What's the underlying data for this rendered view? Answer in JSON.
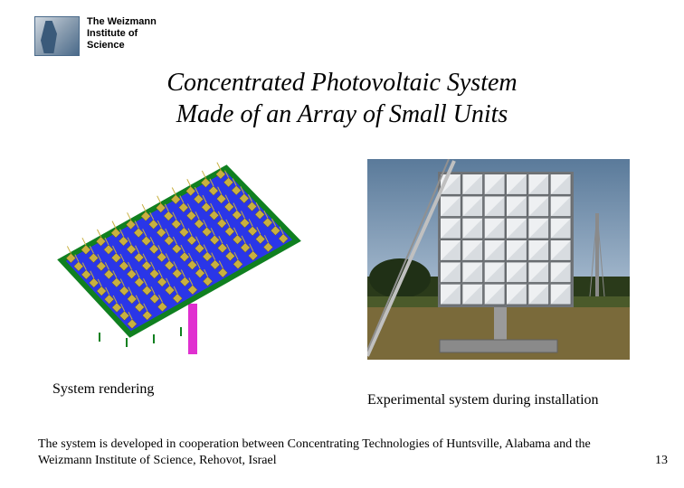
{
  "header": {
    "institute": "The Weizmann\nInstitute of\nScience",
    "logo_colors": {
      "border": "#4a6a8a",
      "fill": "#8a9db0",
      "shape": "#3a5a7a"
    }
  },
  "title": {
    "line1": "Concentrated Photovoltaic System",
    "line2": "Made of an Array of Small Units",
    "fontsize": 28,
    "italic": true
  },
  "figures": {
    "rendering": {
      "caption": "System rendering",
      "panel_color": "#2a36e8",
      "cell_rows": 9,
      "cell_cols": 11,
      "cell_color": "#c8b040",
      "frame_color": "#108020",
      "pole_color": "#e030d0",
      "highlight_color": "#ffffff"
    },
    "photo": {
      "caption": "Experimental system during installation",
      "sky_top": "#5a7a9a",
      "sky_bottom": "#a8bcd0",
      "ground": "#7a6a3a",
      "grass": "#4a5a2a",
      "structure": "#b8b8b8",
      "mirror": "#d8dce0",
      "tree": "#2a3a1a",
      "tower": "#8a8a8a",
      "array_rows": 6,
      "array_cols": 6
    }
  },
  "footer": {
    "text": "The system is developed in cooperation between Concentrating Technologies of Huntsville, Alabama and the Weizmann Institute of Science, Rehovot, Israel"
  },
  "slide_number": "13"
}
